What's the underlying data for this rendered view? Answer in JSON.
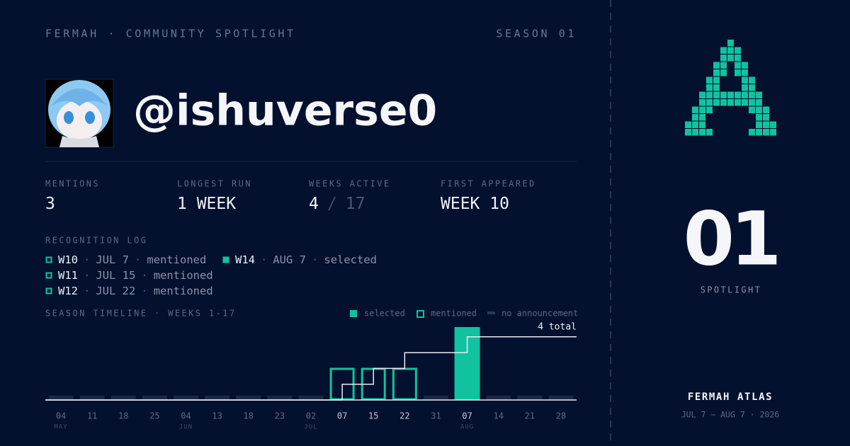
{
  "header": {
    "brand": "FERMAH · COMMUNITY SPOTLIGHT",
    "season": "SEASON 01"
  },
  "profile": {
    "handle": "@ishuverse0"
  },
  "stats": [
    {
      "label": "MENTIONS",
      "value": "3"
    },
    {
      "label": "LONGEST RUN",
      "value": "1 WEEK"
    },
    {
      "label": "WEEKS ACTIVE",
      "value": "4",
      "separator": "/",
      "total": "17"
    },
    {
      "label": "FIRST APPEARED",
      "value": "WEEK 10"
    }
  ],
  "log": {
    "title": "RECOGNITION LOG",
    "separator": "·",
    "entries": [
      {
        "week": "W10",
        "date": "JUL 7",
        "status": "mentioned"
      },
      {
        "week": "W11",
        "date": "JUL 15",
        "status": "mentioned"
      },
      {
        "week": "W12",
        "date": "JUL 22",
        "status": "mentioned"
      },
      {
        "week": "W14",
        "date": "AUG 7",
        "status": "selected"
      }
    ]
  },
  "timeline": {
    "title": "SEASON TIMELINE · WEEKS 1-17",
    "legend": [
      "selected",
      "mentioned",
      "no announcement"
    ],
    "total_label": "4 total",
    "days": [
      "04",
      "11",
      "18",
      "25",
      "04",
      "13",
      "18",
      "23",
      "02",
      "07",
      "15",
      "22",
      "31",
      "07",
      "14",
      "21",
      "28"
    ],
    "months": [
      "MAY",
      null,
      null,
      null,
      "JUN",
      null,
      null,
      null,
      "JUL",
      null,
      null,
      null,
      null,
      "AUG",
      null,
      null,
      null
    ],
    "status": [
      "none",
      "none",
      "none",
      "none",
      "none",
      "none",
      "none",
      "none",
      "none",
      "mentioned",
      "mentioned",
      "mentioned",
      "none",
      "selected",
      "none",
      "none",
      "none"
    ],
    "counts": [
      0,
      0,
      0,
      0,
      0,
      0,
      0,
      0,
      0,
      1,
      1,
      1,
      0,
      1,
      0,
      0,
      0
    ]
  },
  "side": {
    "number": "01",
    "caption": "SPOTLIGHT",
    "name": "FERMAH ATLAS",
    "dates": "JUL 7 — AUG 7 · 2026"
  }
}
